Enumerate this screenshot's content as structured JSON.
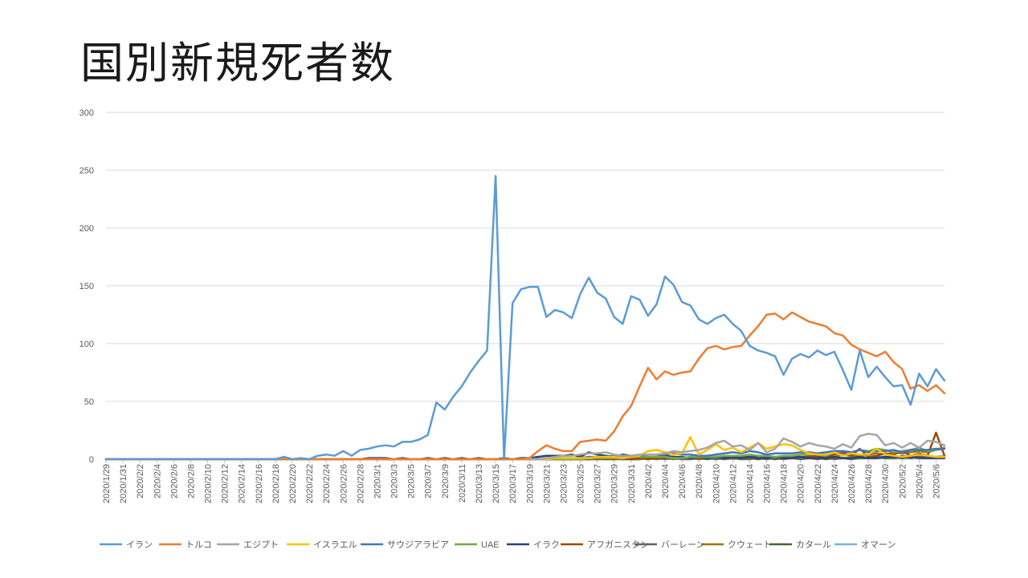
{
  "slide": {
    "title": "国別新規死者数"
  },
  "chart_data": {
    "type": "line",
    "title": "国別新規死者数",
    "xlabel": "",
    "ylabel": "",
    "ylim": [
      0,
      300
    ],
    "yticks": [
      0,
      50,
      100,
      150,
      200,
      250,
      300
    ],
    "grid": true,
    "legend": "bottom",
    "x_start": "2020/1/29",
    "x_tick_labels": [
      "2020/1/29",
      "2020/1/31",
      "2020/2/2",
      "2020/2/4",
      "2020/2/6",
      "2020/2/8",
      "2020/2/10",
      "2020/2/12",
      "2020/2/14",
      "2020/2/16",
      "2020/2/18",
      "2020/2/20",
      "2020/2/22",
      "2020/2/24",
      "2020/2/26",
      "2020/2/28",
      "2020/3/1",
      "2020/3/3",
      "2020/3/5",
      "2020/3/7",
      "2020/3/9",
      "2020/3/11",
      "2020/3/13",
      "2020/3/15",
      "2020/3/17",
      "2020/3/19",
      "2020/3/21",
      "2020/3/23",
      "2020/3/25",
      "2020/3/27",
      "2020/3/29",
      "2020/3/31",
      "2020/4/2",
      "2020/4/4",
      "2020/4/6",
      "2020/4/8",
      "2020/4/10",
      "2020/4/12",
      "2020/4/14",
      "2020/4/16",
      "2020/4/18",
      "2020/4/20",
      "2020/4/22",
      "2020/4/24",
      "2020/4/26",
      "2020/4/28",
      "2020/4/30",
      "2020/5/2",
      "2020/5/4",
      "2020/5/6"
    ],
    "series": [
      {
        "name": "イラン",
        "color": "#5B9BD5",
        "values": [
          0,
          0,
          0,
          0,
          0,
          0,
          0,
          0,
          0,
          0,
          0,
          0,
          0,
          0,
          0,
          0,
          0,
          0,
          0,
          0,
          0,
          2,
          0,
          1,
          0,
          3,
          4,
          3,
          7,
          3,
          8,
          9,
          11,
          12,
          11,
          15,
          15,
          17,
          21,
          49,
          43,
          54,
          63,
          75,
          85,
          94,
          245,
          0,
          135,
          147,
          149,
          149,
          123,
          129,
          127,
          122,
          143,
          157,
          144,
          139,
          123,
          117,
          141,
          138,
          124,
          134,
          158,
          151,
          136,
          133,
          121,
          117,
          122,
          125,
          117,
          111,
          98,
          94,
          92,
          89,
          73,
          87,
          91,
          88,
          94,
          90,
          93,
          77,
          60,
          94,
          71,
          80,
          71,
          63,
          64,
          47,
          74,
          63,
          78,
          68
        ]
      },
      {
        "name": "トルコ",
        "color": "#ED7D31",
        "values": [
          0,
          0,
          0,
          0,
          0,
          0,
          0,
          0,
          0,
          0,
          0,
          0,
          0,
          0,
          0,
          0,
          0,
          0,
          0,
          0,
          0,
          0,
          0,
          0,
          0,
          0,
          0,
          0,
          0,
          0,
          0,
          0,
          0,
          0,
          0,
          0,
          0,
          0,
          0,
          0,
          0,
          0,
          0,
          0,
          0,
          0,
          0,
          0,
          0,
          0,
          1,
          7,
          12,
          9,
          7,
          7,
          15,
          16,
          17,
          16,
          24,
          37,
          46,
          63,
          79,
          69,
          76,
          73,
          75,
          76,
          87,
          96,
          98,
          95,
          97,
          98,
          107,
          115,
          125,
          126,
          121,
          127,
          123,
          119,
          117,
          115,
          109,
          107,
          99,
          95,
          92,
          89,
          93,
          84,
          78,
          61,
          64,
          59,
          64,
          57
        ]
      },
      {
        "name": "エジプト",
        "color": "#A5A5A5",
        "values": [
          0,
          0,
          0,
          0,
          0,
          0,
          0,
          0,
          0,
          0,
          0,
          0,
          0,
          0,
          0,
          0,
          0,
          0,
          0,
          0,
          0,
          0,
          0,
          0,
          0,
          0,
          0,
          0,
          0,
          0,
          0,
          0,
          0,
          0,
          0,
          0,
          0,
          0,
          0,
          0,
          0,
          0,
          0,
          0,
          0,
          0,
          0,
          0,
          0,
          0,
          0,
          0,
          1,
          2,
          3,
          3,
          4,
          5,
          5,
          6,
          4,
          3,
          3,
          4,
          4,
          4,
          5,
          7,
          6,
          7,
          8,
          10,
          14,
          16,
          11,
          12,
          8,
          14,
          6,
          9,
          18,
          15,
          11,
          14,
          12,
          11,
          9,
          13,
          10,
          20,
          22,
          21,
          12,
          14,
          10,
          14,
          10,
          16,
          15,
          12
        ]
      },
      {
        "name": "イスラエル",
        "color": "#FFC000",
        "values": [
          0,
          0,
          0,
          0,
          0,
          0,
          0,
          0,
          0,
          0,
          0,
          0,
          0,
          0,
          0,
          0,
          0,
          0,
          0,
          0,
          0,
          0,
          0,
          0,
          0,
          0,
          0,
          0,
          0,
          0,
          0,
          0,
          0,
          0,
          0,
          0,
          0,
          0,
          0,
          0,
          0,
          0,
          0,
          0,
          0,
          0,
          0,
          0,
          0,
          0,
          0,
          0,
          0,
          1,
          1,
          1,
          1,
          1,
          2,
          2,
          2,
          1,
          2,
          3,
          7,
          8,
          6,
          4,
          5,
          19,
          4,
          8,
          13,
          8,
          10,
          6,
          10,
          14,
          9,
          11,
          13,
          12,
          8,
          5,
          4,
          4,
          6,
          3,
          5,
          4,
          4,
          9,
          4,
          3,
          2,
          3,
          4,
          3,
          2,
          2
        ]
      },
      {
        "name": "サウジアラビア",
        "color": "#4472C4",
        "values": [
          0,
          0,
          0,
          0,
          0,
          0,
          0,
          0,
          0,
          0,
          0,
          0,
          0,
          0,
          0,
          0,
          0,
          0,
          0,
          0,
          0,
          0,
          0,
          0,
          0,
          0,
          0,
          0,
          0,
          0,
          0,
          0,
          0,
          0,
          0,
          0,
          0,
          0,
          0,
          0,
          0,
          0,
          0,
          0,
          0,
          0,
          0,
          0,
          0,
          0,
          0,
          0,
          0,
          1,
          1,
          1,
          1,
          2,
          2,
          2,
          3,
          3,
          2,
          3,
          4,
          4,
          4,
          5,
          4,
          4,
          3,
          3,
          4,
          5,
          6,
          5,
          7,
          6,
          4,
          5,
          5,
          5,
          6,
          6,
          5,
          6,
          7,
          7,
          6,
          8,
          6,
          7,
          7,
          8,
          6,
          8,
          8,
          8,
          9,
          9
        ]
      },
      {
        "name": "UAE",
        "color": "#70AD47",
        "values": [
          0,
          0,
          0,
          0,
          0,
          0,
          0,
          0,
          0,
          0,
          0,
          0,
          0,
          0,
          0,
          0,
          0,
          0,
          0,
          0,
          0,
          0,
          0,
          0,
          0,
          0,
          0,
          0,
          0,
          0,
          0,
          0,
          0,
          0,
          0,
          0,
          0,
          0,
          0,
          0,
          0,
          0,
          0,
          0,
          0,
          0,
          0,
          0,
          0,
          0,
          0,
          0,
          0,
          0,
          0,
          0,
          0,
          1,
          1,
          1,
          1,
          1,
          2,
          2,
          2,
          2,
          2,
          1,
          1,
          2,
          2,
          2,
          2,
          3,
          3,
          3,
          4,
          3,
          3,
          2,
          3,
          3,
          4,
          5,
          4,
          3,
          6,
          7,
          6,
          8,
          7,
          9,
          8,
          6,
          7,
          8,
          10,
          7,
          8,
          10
        ]
      },
      {
        "name": "イラク",
        "color": "#264478",
        "values": [
          0,
          0,
          0,
          0,
          0,
          0,
          0,
          0,
          0,
          0,
          0,
          0,
          0,
          0,
          0,
          0,
          0,
          0,
          0,
          0,
          0,
          0,
          0,
          0,
          0,
          0,
          0,
          0,
          0,
          0,
          0,
          1,
          1,
          1,
          0,
          1,
          0,
          0,
          1,
          0,
          1,
          0,
          1,
          0,
          1,
          0,
          0,
          1,
          0,
          1,
          1,
          2,
          3,
          3,
          3,
          4,
          2,
          6,
          4,
          3,
          2,
          4,
          3,
          3,
          2,
          2,
          3,
          2,
          2,
          1,
          2,
          1,
          2,
          1,
          2,
          1,
          2,
          1,
          1,
          2,
          1,
          1,
          2,
          1,
          1,
          1,
          2,
          1,
          1,
          2,
          1,
          1,
          2,
          2,
          1,
          2,
          1,
          1,
          1,
          1
        ]
      },
      {
        "name": "アフガニスタン",
        "color": "#9E480E",
        "values": [
          0,
          0,
          0,
          0,
          0,
          0,
          0,
          0,
          0,
          0,
          0,
          0,
          0,
          0,
          0,
          0,
          0,
          0,
          0,
          0,
          0,
          0,
          0,
          0,
          0,
          0,
          0,
          0,
          0,
          0,
          0,
          0,
          0,
          0,
          0,
          0,
          0,
          0,
          0,
          0,
          0,
          0,
          0,
          0,
          0,
          0,
          0,
          0,
          0,
          0,
          0,
          0,
          0,
          0,
          0,
          0,
          0,
          1,
          0,
          1,
          0,
          1,
          0,
          1,
          0,
          1,
          1,
          2,
          1,
          2,
          1,
          1,
          2,
          2,
          1,
          2,
          2,
          3,
          2,
          2,
          1,
          3,
          2,
          2,
          3,
          2,
          4,
          6,
          3,
          9,
          2,
          3,
          5,
          4,
          7,
          3,
          5,
          3,
          23,
          3
        ]
      },
      {
        "name": "バーレーン",
        "color": "#636363",
        "values": [
          0,
          0,
          0,
          0,
          0,
          0,
          0,
          0,
          0,
          0,
          0,
          0,
          0,
          0,
          0,
          0,
          0,
          0,
          0,
          0,
          0,
          0,
          0,
          0,
          0,
          0,
          0,
          0,
          0,
          0,
          0,
          0,
          0,
          0,
          0,
          0,
          0,
          0,
          0,
          0,
          0,
          0,
          0,
          0,
          0,
          0,
          0,
          0,
          0,
          0,
          0,
          0,
          0,
          0,
          0,
          0,
          0,
          0,
          1,
          0,
          1,
          0,
          0,
          1,
          0,
          1,
          0,
          1,
          0,
          0,
          1,
          0,
          1,
          0,
          1,
          0,
          0,
          1,
          0,
          1,
          0,
          1,
          0,
          1,
          0,
          1,
          0,
          1,
          0,
          2,
          1,
          1,
          2,
          1,
          3,
          2,
          2,
          1,
          2,
          2
        ]
      },
      {
        "name": "クウェート",
        "color": "#997300",
        "values": [
          0,
          0,
          0,
          0,
          0,
          0,
          0,
          0,
          0,
          0,
          0,
          0,
          0,
          0,
          0,
          0,
          0,
          0,
          0,
          0,
          0,
          0,
          0,
          0,
          0,
          0,
          0,
          0,
          0,
          0,
          0,
          0,
          0,
          0,
          0,
          0,
          0,
          0,
          0,
          0,
          0,
          0,
          0,
          0,
          0,
          0,
          0,
          0,
          0,
          0,
          0,
          0,
          0,
          0,
          0,
          0,
          0,
          0,
          0,
          0,
          0,
          0,
          0,
          0,
          1,
          0,
          1,
          0,
          1,
          1,
          0,
          1,
          1,
          0,
          1,
          1,
          2,
          1,
          1,
          2,
          1,
          2,
          2,
          3,
          2,
          3,
          2,
          4,
          3,
          3,
          4,
          5,
          4,
          6,
          5,
          6,
          7,
          6,
          8,
          9
        ]
      },
      {
        "name": "カタール",
        "color": "#43682B",
        "values": [
          0,
          0,
          0,
          0,
          0,
          0,
          0,
          0,
          0,
          0,
          0,
          0,
          0,
          0,
          0,
          0,
          0,
          0,
          0,
          0,
          0,
          0,
          0,
          0,
          0,
          0,
          0,
          0,
          0,
          0,
          0,
          0,
          0,
          0,
          0,
          0,
          0,
          0,
          0,
          0,
          0,
          0,
          0,
          0,
          0,
          0,
          0,
          0,
          0,
          0,
          0,
          0,
          0,
          0,
          0,
          1,
          0,
          0,
          1,
          0,
          0,
          1,
          0,
          0,
          1,
          0,
          1,
          1,
          0,
          1,
          0,
          1,
          0,
          1,
          1,
          0,
          1,
          0,
          1,
          0,
          1,
          1,
          0,
          1,
          1,
          0,
          1,
          1,
          0,
          1,
          1,
          2,
          1,
          1,
          2,
          1,
          2,
          3,
          2,
          2
        ]
      },
      {
        "name": "オマーン",
        "color": "#7CAFDD",
        "values": [
          0,
          0,
          0,
          0,
          0,
          0,
          0,
          0,
          0,
          0,
          0,
          0,
          0,
          0,
          0,
          0,
          0,
          0,
          0,
          0,
          0,
          0,
          0,
          0,
          0,
          0,
          0,
          0,
          0,
          0,
          0,
          0,
          0,
          0,
          0,
          0,
          0,
          0,
          0,
          0,
          0,
          0,
          0,
          0,
          0,
          0,
          0,
          0,
          0,
          0,
          0,
          0,
          0,
          0,
          0,
          0,
          0,
          0,
          0,
          0,
          0,
          1,
          0,
          0,
          1,
          0,
          1,
          0,
          1,
          0,
          1,
          0,
          1,
          1,
          0,
          1,
          1,
          0,
          1,
          1,
          0,
          1,
          1,
          2,
          1,
          1,
          2,
          1,
          2,
          2,
          1,
          2,
          2,
          1,
          2,
          2,
          3,
          2,
          2,
          3
        ]
      }
    ]
  }
}
